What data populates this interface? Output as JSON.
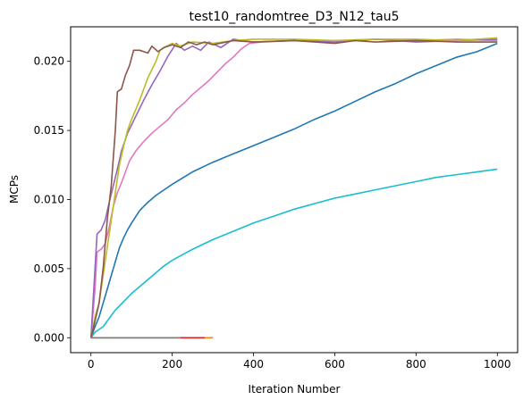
{
  "chart_data": {
    "type": "line",
    "title": "test10_randomtree_D3_N12_tau5",
    "xlabel": "Iteration Number",
    "ylabel": "MCPs",
    "xlim": [
      -50,
      1050
    ],
    "ylim": [
      -0.00108,
      0.0225
    ],
    "xticks": [
      0,
      200,
      400,
      600,
      800,
      1000
    ],
    "xtick_labels": [
      "0",
      "200",
      "400",
      "600",
      "800",
      "1000"
    ],
    "yticks": [
      0.0,
      0.005,
      0.01,
      0.015,
      0.02
    ],
    "ytick_labels": [
      "0.000",
      "0.005",
      "0.010",
      "0.015",
      "0.020"
    ],
    "grid": false,
    "legend": "none",
    "series": [
      {
        "color": "#1f77b4",
        "points": [
          [
            0,
            0.0
          ],
          [
            10,
            0.0008
          ],
          [
            20,
            0.0015
          ],
          [
            30,
            0.0025
          ],
          [
            40,
            0.0035
          ],
          [
            50,
            0.0045
          ],
          [
            60,
            0.0055
          ],
          [
            70,
            0.0065
          ],
          [
            80,
            0.0072
          ],
          [
            90,
            0.0078
          ],
          [
            100,
            0.0083
          ],
          [
            120,
            0.0092
          ],
          [
            140,
            0.0098
          ],
          [
            160,
            0.0103
          ],
          [
            180,
            0.0107
          ],
          [
            200,
            0.0111
          ],
          [
            250,
            0.012
          ],
          [
            300,
            0.0127
          ],
          [
            350,
            0.0133
          ],
          [
            400,
            0.0139
          ],
          [
            450,
            0.0145
          ],
          [
            500,
            0.0151
          ],
          [
            550,
            0.0158
          ],
          [
            600,
            0.0164
          ],
          [
            650,
            0.0171
          ],
          [
            700,
            0.0178
          ],
          [
            750,
            0.0184
          ],
          [
            800,
            0.0191
          ],
          [
            850,
            0.0197
          ],
          [
            900,
            0.0203
          ],
          [
            950,
            0.0207
          ],
          [
            1000,
            0.0213
          ]
        ]
      },
      {
        "color": "#17becf",
        "points": [
          [
            0,
            0.0
          ],
          [
            10,
            0.0004
          ],
          [
            20,
            0.0006
          ],
          [
            30,
            0.0008
          ],
          [
            40,
            0.0012
          ],
          [
            50,
            0.0016
          ],
          [
            60,
            0.002
          ],
          [
            80,
            0.0026
          ],
          [
            100,
            0.0032
          ],
          [
            120,
            0.0037
          ],
          [
            140,
            0.0042
          ],
          [
            160,
            0.0047
          ],
          [
            180,
            0.0052
          ],
          [
            200,
            0.0056
          ],
          [
            250,
            0.0064
          ],
          [
            300,
            0.0071
          ],
          [
            350,
            0.0077
          ],
          [
            400,
            0.0083
          ],
          [
            450,
            0.0088
          ],
          [
            500,
            0.0093
          ],
          [
            550,
            0.0097
          ],
          [
            600,
            0.0101
          ],
          [
            650,
            0.0104
          ],
          [
            700,
            0.0107
          ],
          [
            750,
            0.011
          ],
          [
            800,
            0.0113
          ],
          [
            850,
            0.0116
          ],
          [
            900,
            0.0118
          ],
          [
            950,
            0.012
          ],
          [
            1000,
            0.0122
          ]
        ]
      },
      {
        "color": "#e377c2",
        "points": [
          [
            0,
            0.0
          ],
          [
            10,
            0.0035
          ],
          [
            15,
            0.0062
          ],
          [
            25,
            0.0064
          ],
          [
            35,
            0.0068
          ],
          [
            45,
            0.008
          ],
          [
            55,
            0.0095
          ],
          [
            65,
            0.0105
          ],
          [
            75,
            0.0112
          ],
          [
            85,
            0.012
          ],
          [
            95,
            0.0128
          ],
          [
            110,
            0.0135
          ],
          [
            130,
            0.0142
          ],
          [
            150,
            0.0148
          ],
          [
            170,
            0.0153
          ],
          [
            190,
            0.0158
          ],
          [
            210,
            0.0165
          ],
          [
            230,
            0.017
          ],
          [
            250,
            0.0176
          ],
          [
            270,
            0.0181
          ],
          [
            290,
            0.0186
          ],
          [
            310,
            0.0192
          ],
          [
            330,
            0.0198
          ],
          [
            350,
            0.0203
          ],
          [
            370,
            0.0209
          ],
          [
            390,
            0.0213
          ],
          [
            420,
            0.0214
          ],
          [
            500,
            0.0215
          ],
          [
            600,
            0.0215
          ],
          [
            700,
            0.0216
          ],
          [
            800,
            0.0215
          ],
          [
            900,
            0.0216
          ],
          [
            1000,
            0.0215
          ]
        ]
      },
      {
        "color": "#9467bd",
        "points": [
          [
            0,
            0.0
          ],
          [
            15,
            0.0075
          ],
          [
            25,
            0.0078
          ],
          [
            35,
            0.0085
          ],
          [
            45,
            0.0098
          ],
          [
            55,
            0.011
          ],
          [
            65,
            0.0122
          ],
          [
            75,
            0.0135
          ],
          [
            90,
            0.0148
          ],
          [
            110,
            0.016
          ],
          [
            130,
            0.0172
          ],
          [
            150,
            0.0183
          ],
          [
            170,
            0.0193
          ],
          [
            190,
            0.0204
          ],
          [
            210,
            0.0213
          ],
          [
            230,
            0.0208
          ],
          [
            250,
            0.0211
          ],
          [
            270,
            0.0208
          ],
          [
            290,
            0.0214
          ],
          [
            320,
            0.021
          ],
          [
            350,
            0.0216
          ],
          [
            400,
            0.0214
          ],
          [
            500,
            0.0215
          ],
          [
            600,
            0.0214
          ],
          [
            700,
            0.0216
          ],
          [
            800,
            0.0214
          ],
          [
            900,
            0.0215
          ],
          [
            1000,
            0.0216
          ]
        ]
      },
      {
        "color": "#bcbd22",
        "points": [
          [
            0,
            0.0
          ],
          [
            10,
            0.0015
          ],
          [
            20,
            0.0025
          ],
          [
            30,
            0.0045
          ],
          [
            40,
            0.0065
          ],
          [
            50,
            0.0085
          ],
          [
            60,
            0.0105
          ],
          [
            70,
            0.0125
          ],
          [
            80,
            0.0138
          ],
          [
            90,
            0.015
          ],
          [
            100,
            0.0158
          ],
          [
            110,
            0.0165
          ],
          [
            120,
            0.0172
          ],
          [
            140,
            0.0188
          ],
          [
            160,
            0.02
          ],
          [
            170,
            0.0208
          ],
          [
            180,
            0.021
          ],
          [
            200,
            0.0213
          ],
          [
            220,
            0.0211
          ],
          [
            250,
            0.0214
          ],
          [
            300,
            0.0213
          ],
          [
            350,
            0.0215
          ],
          [
            400,
            0.0216
          ],
          [
            500,
            0.0216
          ],
          [
            600,
            0.0215
          ],
          [
            700,
            0.0216
          ],
          [
            800,
            0.0216
          ],
          [
            900,
            0.0215
          ],
          [
            1000,
            0.0217
          ]
        ]
      },
      {
        "color": "#8c564b",
        "points": [
          [
            0,
            0.0
          ],
          [
            10,
            0.0012
          ],
          [
            20,
            0.0025
          ],
          [
            30,
            0.005
          ],
          [
            40,
            0.0085
          ],
          [
            50,
            0.011
          ],
          [
            60,
            0.015
          ],
          [
            65,
            0.0178
          ],
          [
            75,
            0.018
          ],
          [
            85,
            0.019
          ],
          [
            95,
            0.0197
          ],
          [
            105,
            0.0208
          ],
          [
            120,
            0.0208
          ],
          [
            140,
            0.0206
          ],
          [
            150,
            0.0211
          ],
          [
            165,
            0.0207
          ],
          [
            180,
            0.021
          ],
          [
            200,
            0.0212
          ],
          [
            220,
            0.021
          ],
          [
            240,
            0.0214
          ],
          [
            260,
            0.0212
          ],
          [
            280,
            0.0214
          ],
          [
            300,
            0.0212
          ],
          [
            350,
            0.0215
          ],
          [
            400,
            0.0214
          ],
          [
            500,
            0.0215
          ],
          [
            600,
            0.0213
          ],
          [
            650,
            0.0215
          ],
          [
            700,
            0.0214
          ],
          [
            800,
            0.0215
          ],
          [
            900,
            0.0214
          ],
          [
            1000,
            0.0214
          ]
        ]
      },
      {
        "color": "#ff7f0e",
        "points": [
          [
            0,
            0.0
          ],
          [
            300,
            0.0
          ]
        ]
      },
      {
        "color": "#d62728",
        "points": [
          [
            0,
            0.0
          ],
          [
            280,
            0.0
          ]
        ]
      },
      {
        "color": "#7f7f7f",
        "points": [
          [
            0,
            0.0
          ],
          [
            220,
            0.0
          ]
        ]
      }
    ]
  }
}
